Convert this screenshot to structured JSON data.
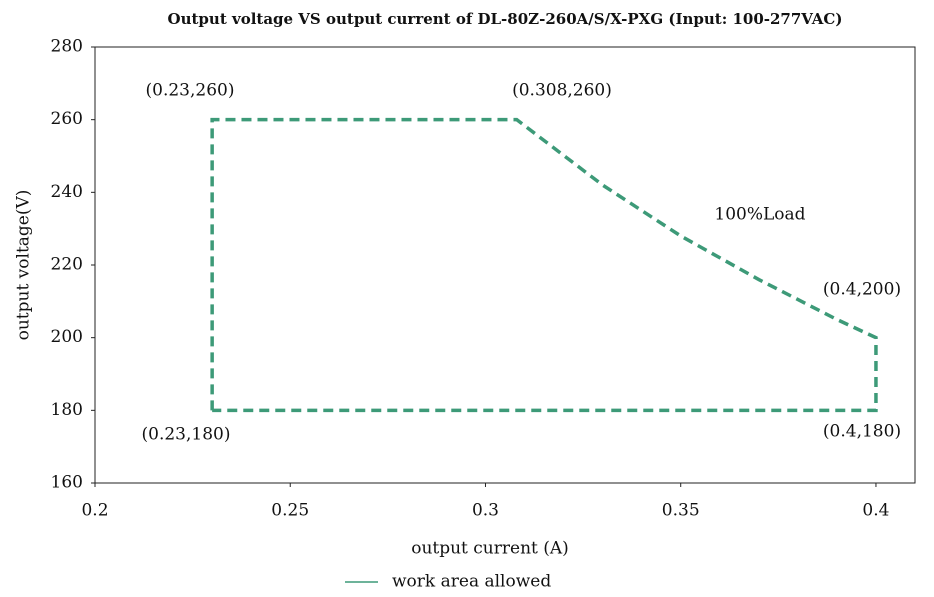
{
  "chart_data": {
    "type": "line",
    "title": "Output voltage VS output current of DL-80Z-260A/S/X-PXG (Input: 100-277VAC)",
    "x_label": "output current (A)",
    "y_label": "output voltage(V)",
    "x": [
      0.23,
      0.23,
      0.308,
      0.33,
      0.35,
      0.37,
      0.39,
      0.4,
      0.4,
      0.23
    ],
    "series": [
      {
        "name": "work area allowed",
        "color": "#3d9a78",
        "values": [
          180,
          260,
          260,
          242,
          228,
          216,
          205,
          200,
          180,
          180
        ]
      }
    ],
    "xlim": [
      0.2,
      0.41
    ],
    "ylim": [
      160,
      280
    ],
    "xticks": [
      0.2,
      0.25,
      0.3,
      0.35,
      0.4
    ],
    "yticks": [
      160,
      180,
      200,
      220,
      240,
      260,
      280
    ],
    "annotations": [
      "(0.23,260)",
      "(0.308,260)",
      "100%Load",
      "(0.4,200)",
      "(0.23,180)",
      "(0.4,180)"
    ],
    "grid": false
  }
}
